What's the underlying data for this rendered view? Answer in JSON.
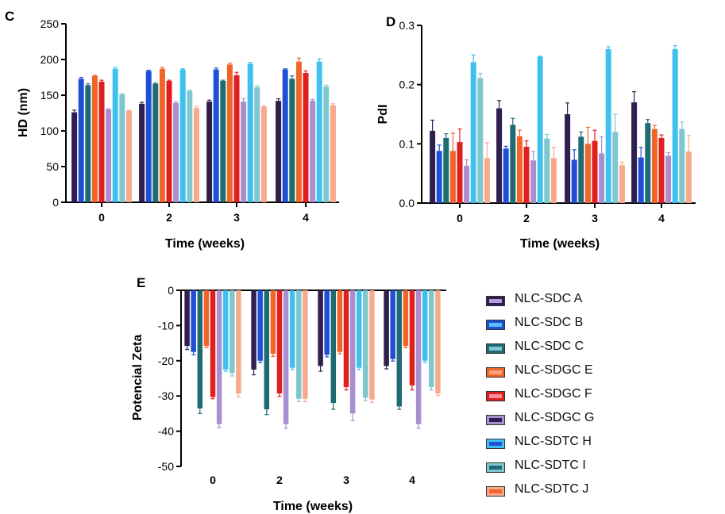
{
  "legend": [
    {
      "label": "NLC-SDC A",
      "color": "#2e1f4f",
      "inner": "#b39ddb"
    },
    {
      "label": "NLC-SDC B",
      "color": "#1f4fd6",
      "inner": "#4fc3f7"
    },
    {
      "label": "NLC-SDC C",
      "color": "#1f6b73",
      "inner": "#7fc7cf"
    },
    {
      "label": "NLC-SDGC E",
      "color": "#f06428",
      "inner": "#f7a47a"
    },
    {
      "label": "NLC-SDGC F",
      "color": "#e01f1f",
      "inner": "#f58ea0"
    },
    {
      "label": "NLC-SDGC G",
      "color": "#a98fd0",
      "inner": "#2e1f4f"
    },
    {
      "label": "NLC-SDTC H",
      "color": "#3fc1ef",
      "inner": "#1f4fd6"
    },
    {
      "label": "NLC-SDTC I",
      "color": "#7fc7cf",
      "inner": "#1f6b73"
    },
    {
      "label": "NLC-SDTC J",
      "color": "#f7a98c",
      "inner": "#f06428"
    }
  ],
  "chart_data": [
    {
      "type": "bar",
      "panel": "C",
      "xlabel": "Time (weeks)",
      "ylabel": "HD (nm)",
      "categories": [
        "0",
        "2",
        "3",
        "4"
      ],
      "ylim": [
        0,
        250
      ],
      "yticks": [
        0,
        50,
        100,
        150,
        200,
        250
      ],
      "series": [
        {
          "name": "NLC-SDC A",
          "values": [
            126,
            138,
            141,
            142
          ],
          "errors": [
            3,
            2,
            2,
            3
          ]
        },
        {
          "name": "NLC-SDC B",
          "values": [
            173,
            184,
            186,
            186
          ],
          "errors": [
            2,
            1,
            2,
            1
          ]
        },
        {
          "name": "NLC-SDC C",
          "values": [
            164,
            166,
            170,
            173
          ],
          "errors": [
            2,
            1,
            1,
            4
          ]
        },
        {
          "name": "NLC-SDGC E",
          "values": [
            177,
            187,
            193,
            197
          ],
          "errors": [
            1,
            2,
            2,
            5
          ]
        },
        {
          "name": "NLC-SDGC F",
          "values": [
            169,
            170,
            178,
            181
          ],
          "errors": [
            2,
            1,
            4,
            3
          ]
        },
        {
          "name": "NLC-SDGC G",
          "values": [
            130,
            139,
            141,
            142
          ],
          "errors": [
            1,
            2,
            4,
            2
          ]
        },
        {
          "name": "NLC-SDTC H",
          "values": [
            187,
            186,
            194,
            197
          ],
          "errors": [
            2,
            1,
            2,
            4
          ]
        },
        {
          "name": "NLC-SDTC I",
          "values": [
            151,
            156,
            161,
            162
          ],
          "errors": [
            1,
            1,
            2,
            2
          ]
        },
        {
          "name": "NLC-SDTC J",
          "values": [
            128,
            132,
            134,
            136
          ],
          "errors": [
            1,
            2,
            1,
            2
          ]
        }
      ]
    },
    {
      "type": "bar",
      "panel": "D",
      "xlabel": "Time (weeks)",
      "ylabel": "PdI",
      "categories": [
        "0",
        "2",
        "3",
        "4"
      ],
      "ylim": [
        0,
        0.3
      ],
      "yticks": [
        0.0,
        0.1,
        0.2,
        0.3
      ],
      "series": [
        {
          "name": "NLC-SDC A",
          "values": [
            0.122,
            0.16,
            0.15,
            0.17
          ],
          "errors": [
            0.018,
            0.013,
            0.019,
            0.018
          ]
        },
        {
          "name": "NLC-SDC B",
          "values": [
            0.088,
            0.092,
            0.073,
            0.077
          ],
          "errors": [
            0.01,
            0.004,
            0.017,
            0.017
          ]
        },
        {
          "name": "NLC-SDC C",
          "values": [
            0.11,
            0.132,
            0.112,
            0.135
          ],
          "errors": [
            0.007,
            0.011,
            0.008,
            0.006
          ]
        },
        {
          "name": "NLC-SDGC E",
          "values": [
            0.088,
            0.113,
            0.1,
            0.125
          ],
          "errors": [
            0.03,
            0.01,
            0.028,
            0.006
          ]
        },
        {
          "name": "NLC-SDGC F",
          "values": [
            0.103,
            0.095,
            0.105,
            0.11
          ],
          "errors": [
            0.022,
            0.01,
            0.018,
            0.005
          ]
        },
        {
          "name": "NLC-SDGC G",
          "values": [
            0.063,
            0.072,
            0.084,
            0.08
          ],
          "errors": [
            0.01,
            0.015,
            0.028,
            0.005
          ]
        },
        {
          "name": "NLC-SDTC H",
          "values": [
            0.238,
            0.247,
            0.26,
            0.26
          ],
          "errors": [
            0.012,
            0.001,
            0.004,
            0.006
          ]
        },
        {
          "name": "NLC-SDTC I",
          "values": [
            0.211,
            0.109,
            0.12,
            0.125
          ],
          "errors": [
            0.008,
            0.007,
            0.03,
            0.012
          ]
        },
        {
          "name": "NLC-SDTC J",
          "values": [
            0.076,
            0.076,
            0.064,
            0.087
          ],
          "errors": [
            0.026,
            0.018,
            0.005,
            0.027
          ]
        }
      ]
    },
    {
      "type": "bar",
      "panel": "E",
      "xlabel": "Time (weeks)",
      "ylabel": "Potencial Zeta",
      "categories": [
        "0",
        "2",
        "3",
        "4"
      ],
      "ylim": [
        -50,
        0
      ],
      "yticks": [
        0,
        -10,
        -20,
        -30,
        -40,
        -50
      ],
      "series": [
        {
          "name": "NLC-SDC A",
          "values": [
            -15.8,
            -22.5,
            -21.5,
            -21.5
          ],
          "errors": [
            1.0,
            1.5,
            1.5,
            0.8
          ]
        },
        {
          "name": "NLC-SDC B",
          "values": [
            -17.5,
            -20.0,
            -18.3,
            -19.5
          ],
          "errors": [
            0.8,
            0.5,
            0.6,
            0.6
          ]
        },
        {
          "name": "NLC-SDC C",
          "values": [
            -33.5,
            -33.8,
            -32.0,
            -33.0
          ],
          "errors": [
            1.5,
            1.5,
            1.8,
            0.8
          ]
        },
        {
          "name": "NLC-SDGC E",
          "values": [
            -15.8,
            -18.0,
            -17.5,
            -15.8
          ],
          "errors": [
            0.5,
            0.8,
            0.5,
            0.5
          ]
        },
        {
          "name": "NLC-SDGC F",
          "values": [
            -30.3,
            -29.3,
            -27.5,
            -27.0
          ],
          "errors": [
            0.5,
            0.8,
            0.8,
            1.3
          ]
        },
        {
          "name": "NLC-SDGC G",
          "values": [
            -38.0,
            -38.0,
            -35.0,
            -38.0
          ],
          "errors": [
            1.0,
            1.2,
            2.0,
            1.2
          ]
        },
        {
          "name": "NLC-SDTC H",
          "values": [
            -22.5,
            -22.0,
            -22.0,
            -20.0
          ],
          "errors": [
            0.5,
            0.5,
            0.5,
            0.5
          ]
        },
        {
          "name": "NLC-SDTC I",
          "values": [
            -23.5,
            -30.8,
            -30.5,
            -27.5
          ],
          "errors": [
            0.8,
            0.8,
            0.8,
            0.8
          ]
        },
        {
          "name": "NLC-SDTC J",
          "values": [
            -29.3,
            -30.8,
            -31.0,
            -29.3
          ],
          "errors": [
            1.0,
            0.8,
            0.8,
            0.6
          ]
        }
      ]
    }
  ]
}
